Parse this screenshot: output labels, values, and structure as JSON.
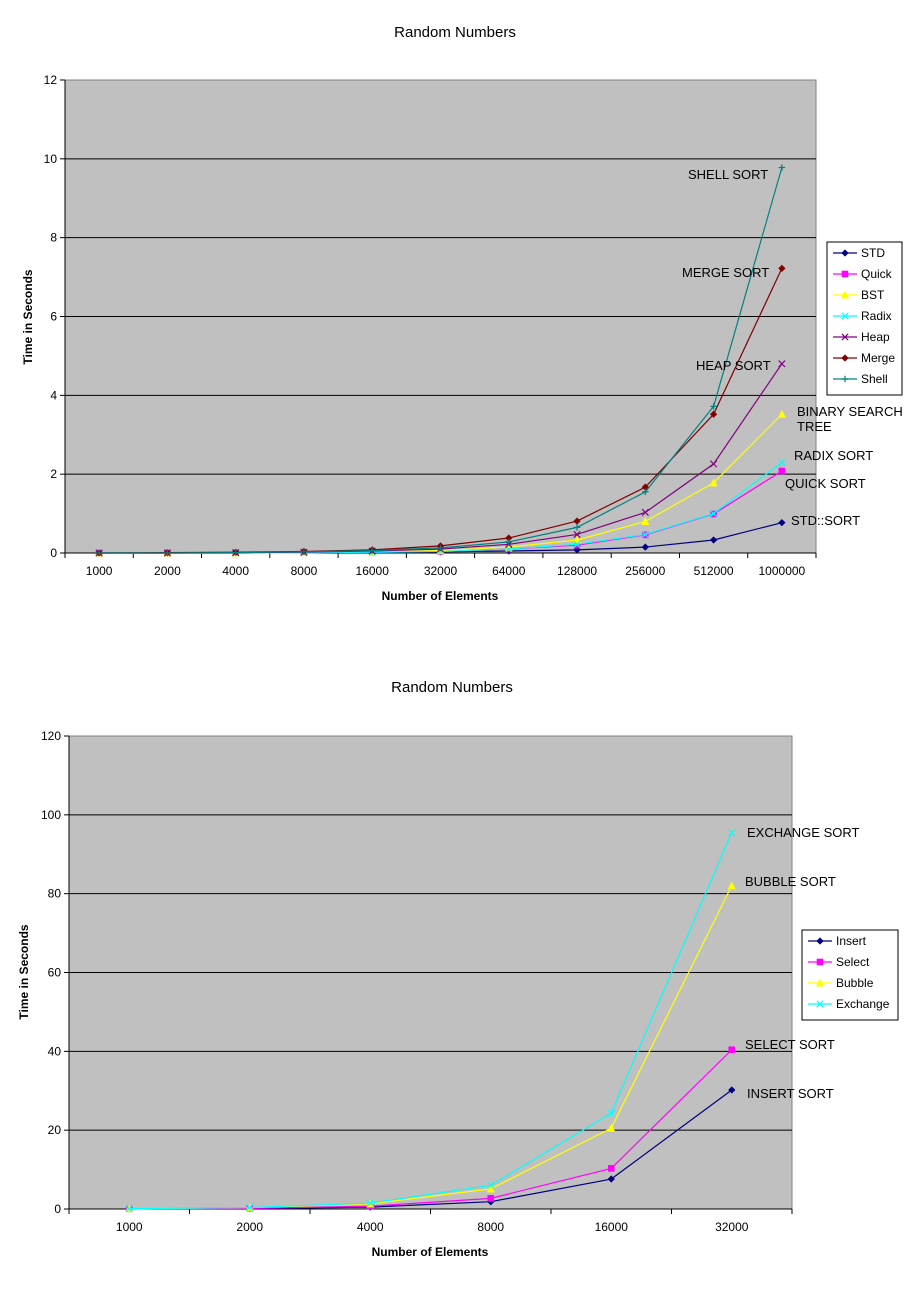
{
  "chart_data": [
    {
      "type": "line",
      "title": "Random Numbers",
      "xlabel": "Number of Elements",
      "ylabel": "Time in Seconds",
      "ylim": [
        0,
        12
      ],
      "yticks": [
        0,
        2,
        4,
        6,
        8,
        10,
        12
      ],
      "grid": true,
      "legend_position": "right",
      "plot_background": "#c0c0c0",
      "categories": [
        "1000",
        "2000",
        "4000",
        "8000",
        "16000",
        "32000",
        "64000",
        "128000",
        "256000",
        "512000",
        "1000000"
      ],
      "series": [
        {
          "name": "STD",
          "color": "#000080",
          "marker": "diamond",
          "values": [
            0,
            0,
            0,
            0.01,
            0.02,
            0.03,
            0.05,
            0.08,
            0.15,
            0.33,
            0.77
          ]
        },
        {
          "name": "Quick",
          "color": "#ff00ff",
          "marker": "square",
          "values": [
            0,
            0,
            0,
            0.01,
            0.02,
            0.04,
            0.1,
            0.2,
            0.46,
            0.99,
            2.08
          ]
        },
        {
          "name": "BST",
          "color": "#ffff00",
          "marker": "triangle",
          "values": [
            0,
            0,
            0,
            0.01,
            0.03,
            0.06,
            0.15,
            0.33,
            0.8,
            1.78,
            3.52
          ]
        },
        {
          "name": "Radix",
          "color": "#00ffff",
          "marker": "x",
          "values": [
            0,
            0,
            0,
            0.01,
            0.02,
            0.04,
            0.1,
            0.22,
            0.47,
            1.0,
            2.3
          ]
        },
        {
          "name": "Heap",
          "color": "#800080",
          "marker": "x",
          "values": [
            0,
            0,
            0.01,
            0.02,
            0.05,
            0.1,
            0.22,
            0.47,
            1.03,
            2.26,
            4.8
          ]
        },
        {
          "name": "Merge",
          "color": "#800000",
          "marker": "diamond",
          "values": [
            0,
            0.01,
            0.02,
            0.04,
            0.08,
            0.18,
            0.38,
            0.81,
            1.67,
            3.52,
            7.22
          ]
        },
        {
          "name": "Shell",
          "color": "#008080",
          "marker": "plus",
          "values": [
            0,
            0,
            0.01,
            0.03,
            0.06,
            0.13,
            0.28,
            0.65,
            1.55,
            3.72,
            9.78
          ]
        }
      ],
      "annotations": [
        {
          "text": "SHELL SORT",
          "series": "Shell"
        },
        {
          "text": "MERGE SORT",
          "series": "Merge"
        },
        {
          "text": "HEAP SORT",
          "series": "Heap"
        },
        {
          "text": "BINARY SEARCH",
          "series": "BST"
        },
        {
          "text": "TREE",
          "series": "BST"
        },
        {
          "text": "RADIX SORT",
          "series": "Radix"
        },
        {
          "text": "QUICK SORT",
          "series": "Quick"
        },
        {
          "text": "STD::SORT",
          "series": "STD"
        }
      ]
    },
    {
      "type": "line",
      "title": "Random Numbers",
      "xlabel": "Number of Elements",
      "ylabel": "Time in Seconds",
      "ylim": [
        0,
        120
      ],
      "yticks": [
        0,
        20,
        40,
        60,
        80,
        100,
        120
      ],
      "grid": true,
      "legend_position": "right",
      "plot_background": "#c0c0c0",
      "categories": [
        "1000",
        "2000",
        "4000",
        "8000",
        "16000",
        "32000"
      ],
      "series": [
        {
          "name": "Insert",
          "color": "#000080",
          "marker": "diamond",
          "values": [
            0.03,
            0.12,
            0.47,
            1.85,
            7.6,
            30.2
          ]
        },
        {
          "name": "Select",
          "color": "#ff00ff",
          "marker": "square",
          "values": [
            0.04,
            0.17,
            0.7,
            2.7,
            10.3,
            40.4
          ]
        },
        {
          "name": "Bubble",
          "color": "#ffff00",
          "marker": "triangle",
          "values": [
            0.08,
            0.33,
            1.3,
            5.1,
            20.5,
            82
          ]
        },
        {
          "name": "Exchange",
          "color": "#00ffff",
          "marker": "x",
          "values": [
            0.09,
            0.38,
            1.5,
            6.0,
            24.3,
            95.5
          ]
        }
      ],
      "annotations": [
        {
          "text": "EXCHANGE SORT",
          "series": "Exchange"
        },
        {
          "text": "BUBBLE SORT",
          "series": "Bubble"
        },
        {
          "text": "SELECT SORT",
          "series": "Select"
        },
        {
          "text": "INSERT SORT",
          "series": "Insert"
        }
      ]
    }
  ]
}
